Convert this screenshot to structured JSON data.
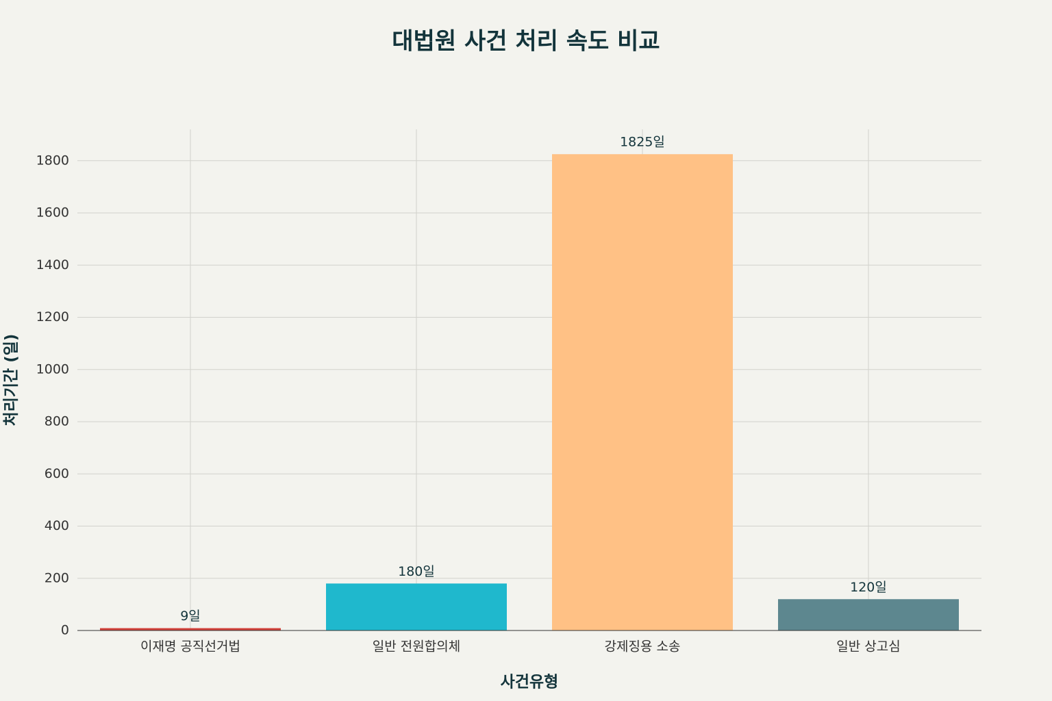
{
  "chart_data": {
    "type": "bar",
    "title": "대법원 사건 처리 속도 비교",
    "x_label": "사건유형",
    "y_label": "처리기간 (일)",
    "categories": [
      "이재명 공직선거법",
      "일반 전원합의체",
      "강제징용 소송",
      "일반 상고심"
    ],
    "values": [
      9,
      180,
      1825,
      120
    ],
    "value_labels": [
      "9일",
      "180일",
      "1825일",
      "120일"
    ],
    "colors": [
      "#d2413a",
      "#1fb8cd",
      "#ffc185",
      "#5d878f"
    ],
    "ylim": [
      0,
      1920
    ],
    "yticks": [
      0,
      200,
      400,
      600,
      800,
      1000,
      1200,
      1400,
      1600,
      1800
    ],
    "grid": true
  }
}
